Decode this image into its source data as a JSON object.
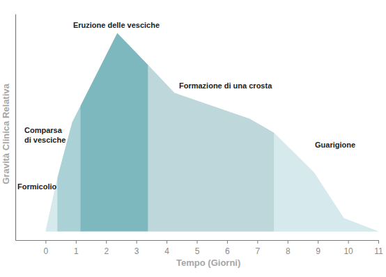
{
  "chart_data": {
    "type": "area",
    "x_label": "Tempo (Giorni)",
    "y_label": "Gravità Clinica Relativa",
    "xlim": [
      -1,
      11
    ],
    "xticks": [
      0,
      1,
      2,
      3,
      4,
      5,
      6,
      7,
      8,
      9,
      10,
      11
    ],
    "ylim": [
      -4,
      100
    ],
    "yticks": [],
    "tick_labels": "x",
    "color": "#d6e9ec",
    "x": [
      0,
      0.39,
      0.88,
      1.15,
      2.37,
      3.39,
      4.26,
      6.75,
      7.55,
      8.87,
      9.86,
      11
    ],
    "values": [
      0,
      24.6,
      50.2,
      57.6,
      91.2,
      76.5,
      63.7,
      51.8,
      45.4,
      27.2,
      6.1,
      0
    ],
    "phases": [
      {
        "label": [
          "Formicolio"
        ],
        "start": 0,
        "end": 0.39,
        "color": "#d6e9ec"
      },
      {
        "label": [
          "Comparsa",
          "di vesciche"
        ],
        "start": 0.39,
        "end": 1.15,
        "color": "#a9d1d6"
      },
      {
        "label": [
          "Eruzione delle vesciche"
        ],
        "start": 1.15,
        "end": 3.39,
        "color": "#7db8bf"
      },
      {
        "label": [
          "Formazione di una crosta"
        ],
        "start": 3.39,
        "end": 7.55,
        "color": "#bdd7da"
      },
      {
        "label": [
          "Guarigione"
        ],
        "start": 7.55,
        "end": 11,
        "color": "#d6e9ec"
      }
    ]
  }
}
